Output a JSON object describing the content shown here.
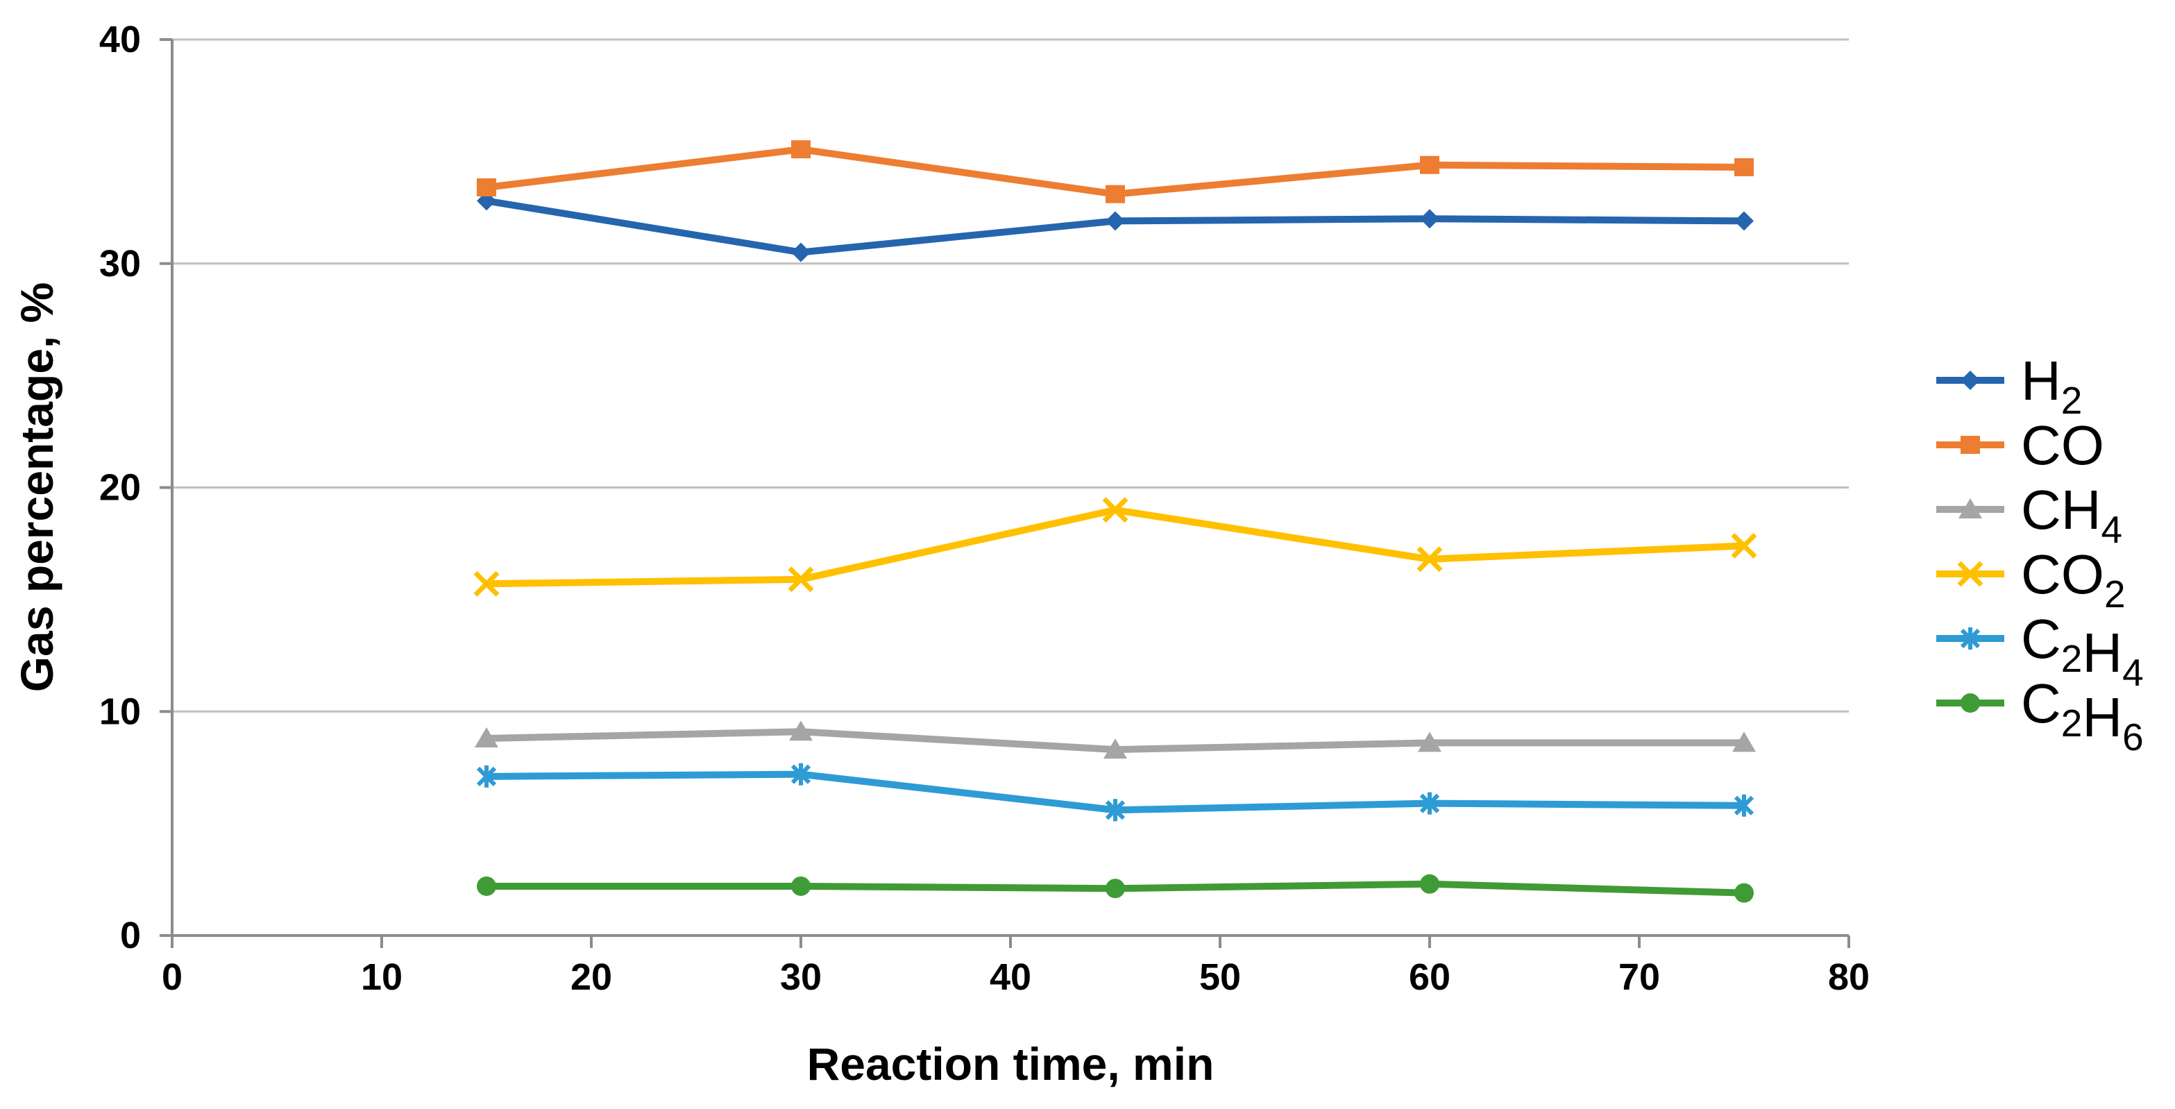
{
  "page": {
    "background": "#FFFFFF"
  },
  "chart_data": {
    "type": "line",
    "title": "",
    "xlabel": "Reaction time, min",
    "ylabel": "Gas percentage, %",
    "xlim": [
      0,
      80
    ],
    "ylim": [
      0,
      40
    ],
    "x_ticks": [
      0,
      10,
      20,
      30,
      40,
      50,
      60,
      70,
      80
    ],
    "y_ticks": [
      0,
      10,
      20,
      30,
      40
    ],
    "grid": "horizontal-gridlines-on",
    "legend_position": "right",
    "x": [
      15,
      30,
      45,
      60,
      75
    ],
    "series": [
      {
        "name": "H2",
        "label_parts": [
          {
            "t": "H"
          },
          {
            "t": "2",
            "sub": true
          }
        ],
        "marker": "diamond",
        "color": "#2565AE",
        "values": [
          32.8,
          30.5,
          31.9,
          32.0,
          31.9
        ]
      },
      {
        "name": "CO",
        "label_parts": [
          {
            "t": "CO"
          }
        ],
        "marker": "square",
        "color": "#ED7D31",
        "values": [
          33.4,
          35.1,
          33.1,
          34.4,
          34.3
        ]
      },
      {
        "name": "CH4",
        "label_parts": [
          {
            "t": "CH"
          },
          {
            "t": "4",
            "sub": true
          }
        ],
        "marker": "triangle",
        "color": "#A5A5A5",
        "values": [
          8.8,
          9.1,
          8.3,
          8.6,
          8.6
        ]
      },
      {
        "name": "CO2",
        "label_parts": [
          {
            "t": "CO"
          },
          {
            "t": "2",
            "sub": true
          }
        ],
        "marker": "x",
        "color": "#FFC000",
        "values": [
          15.7,
          15.9,
          19.0,
          16.8,
          17.4
        ]
      },
      {
        "name": "C2H4",
        "label_parts": [
          {
            "t": "C"
          },
          {
            "t": "2",
            "sub": true
          },
          {
            "t": "H"
          },
          {
            "t": "4",
            "sub": true
          }
        ],
        "marker": "asterisk",
        "color": "#2E9BD5",
        "values": [
          7.1,
          7.2,
          5.6,
          5.9,
          5.8
        ]
      },
      {
        "name": "C2H6",
        "label_parts": [
          {
            "t": "C"
          },
          {
            "t": "2",
            "sub": true
          },
          {
            "t": "H"
          },
          {
            "t": "6",
            "sub": true
          }
        ],
        "marker": "circle",
        "color": "#3F9B35",
        "values": [
          2.2,
          2.2,
          2.1,
          2.3,
          1.9
        ]
      }
    ],
    "colors": {
      "gridline": "#BFBFBF",
      "axis": "#8C8C8C",
      "text": "#000000"
    }
  }
}
